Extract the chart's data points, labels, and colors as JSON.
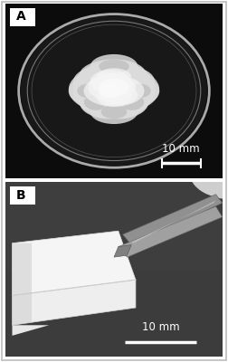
{
  "panel_A_label": "A",
  "panel_B_label": "B",
  "scale_bar_text": "10 mm",
  "figure_bg": "#ffffff",
  "panel_A_bg": "#0d0d0d",
  "panel_B_bg": "#3a3a3a",
  "label_fontsize": 10,
  "scale_fontsize": 8.5,
  "panel_A_dish_color": "#888888",
  "panel_A_dish_fill": "#111111",
  "blob_base": "#e8e8e8",
  "blob_highlight": "#f8f8f8",
  "blob_shadow": "#c0c0c0",
  "sheet_white": "#f2f2f2",
  "sheet_gray": "#d8d8d8",
  "tweezer_color": "#888888",
  "tweezer_dark": "#555555",
  "scale_bar_color_A": "#ffffff",
  "scale_bar_color_B": "#ffffff"
}
